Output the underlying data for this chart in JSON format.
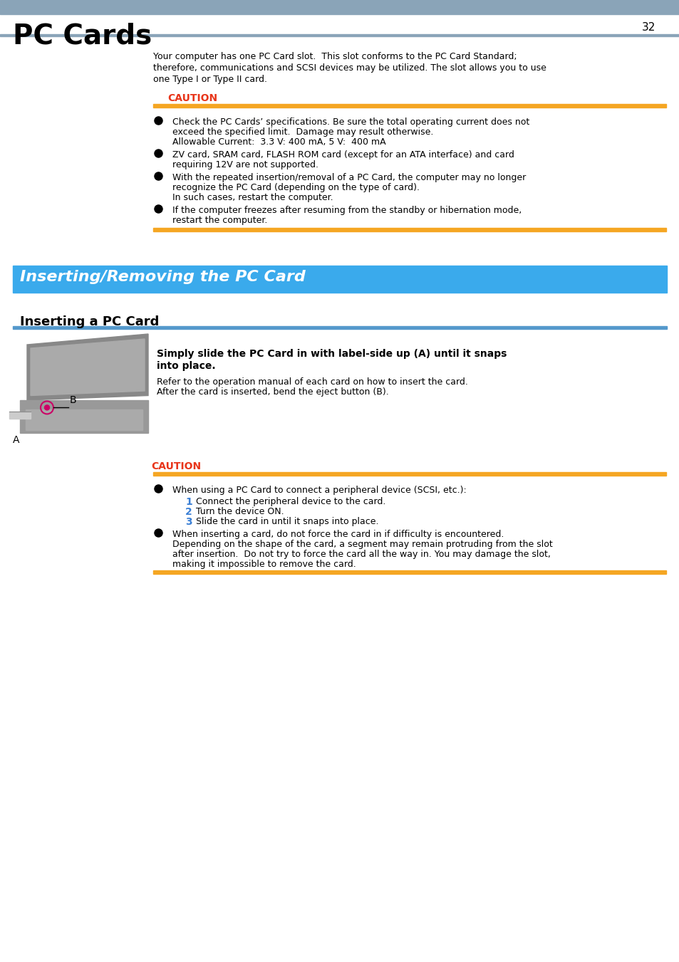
{
  "title": "PC Cards",
  "page_number": "32",
  "header_bar_color": "#8aa4b8",
  "background_color": "#ffffff",
  "section_bg_color": "#3aaaec",
  "subsection_bar_color": "#5599cc",
  "caution_color": "#e8351a",
  "orange_line_color": "#f5a623",
  "intro_lines": [
    "Your computer has one PC Card slot.  This slot conforms to the PC Card Standard;",
    "therefore, communications and SCSI devices may be utilized. The slot allows you to use",
    "one Type I or Type II card."
  ],
  "caution_label": "CAUTION",
  "caution_items": [
    [
      "Check the PC Cards’ specifications. Be sure the total operating current does not",
      "exceed the specified limit.  Damage may result otherwise.",
      "Allowable Current:  3.3 V: 400 mA, 5 V:  400 mA"
    ],
    [
      "ZV card, SRAM card, FLASH ROM card (except for an ATA interface) and card",
      "requiring 12V are not supported."
    ],
    [
      "With the repeated insertion/removal of a PC Card, the computer may no longer",
      "recognize the PC Card (depending on the type of card).",
      "In such cases, restart the computer."
    ],
    [
      "If the computer freezes after resuming from the standby or hibernation mode,",
      "restart the computer."
    ]
  ],
  "section_title": "Inserting/Removing the PC Card",
  "subsection_title": "Inserting a PC Card",
  "insert_bold_lines": [
    "Simply slide the PC Card in with label-side up (A) until it snaps",
    "into place."
  ],
  "insert_lines": [
    "Refer to the operation manual of each card on how to insert the card.",
    "After the card is inserted, bend the eject button (B)."
  ],
  "caution2_item1_header": "When using a PC Card to connect a peripheral device (SCSI, etc.):",
  "caution2_item1_numbered": [
    [
      "1",
      "Connect the peripheral device to the card."
    ],
    [
      "2",
      "Turn the device ON."
    ],
    [
      "3",
      "Slide the card in until it snaps into place."
    ]
  ],
  "caution2_item2_lines": [
    "When inserting a card, do not force the card in if difficulty is encountered.",
    "Depending on the shape of the card, a segment may remain protruding from the slot",
    "after insertion.  Do not try to force the card all the way in. You may damage the slot,",
    "making it impossible to remove the card."
  ],
  "number_color": "#3a7fd5"
}
